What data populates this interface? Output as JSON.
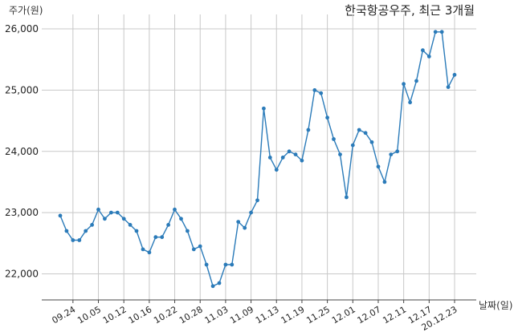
{
  "chart_data": {
    "type": "line",
    "title": "한국항공우주, 최근 3개월",
    "ylabel": "주가(원)",
    "xlabel": "날짜(일)",
    "ylim": [
      21600,
      26200
    ],
    "yticks": [
      "22,000",
      "23,000",
      "24,000",
      "25,000",
      "26,000"
    ],
    "ytick_values": [
      22000,
      23000,
      24000,
      25000,
      26000
    ],
    "xtick_labels": [
      "09.24",
      "10.05",
      "10.12",
      "10.16",
      "10.22",
      "10.28",
      "11.03",
      "11.09",
      "11.13",
      "11.19",
      "11.25",
      "12.01",
      "12.07",
      "12.11",
      "12.17",
      "20.12.23"
    ],
    "xtick_indices": [
      2,
      6,
      10,
      14,
      18,
      22,
      26,
      30,
      34,
      38,
      42,
      46,
      50,
      54,
      58,
      62
    ],
    "grid": true,
    "series": [
      {
        "values": [
          22950,
          22700,
          22550,
          22550,
          22700,
          22800,
          23050,
          22900,
          23000,
          23000,
          22900,
          22800,
          22700,
          22400,
          22350,
          22600,
          22600,
          22800,
          23050,
          22900,
          22700,
          22400,
          22450,
          22150,
          21800,
          21850,
          22150,
          22150,
          22850,
          22750,
          23000,
          23200,
          24700,
          23900,
          23700,
          23900,
          24000,
          23950,
          23850,
          24350,
          25000,
          24950,
          24550,
          24200,
          23950,
          23250,
          24100,
          24350,
          24300,
          24150,
          23750,
          23500,
          23950,
          24000,
          25100,
          24800,
          25150,
          25650,
          25550,
          25950,
          25950,
          25050,
          25250
        ],
        "color": "#2b7bb9"
      }
    ]
  }
}
